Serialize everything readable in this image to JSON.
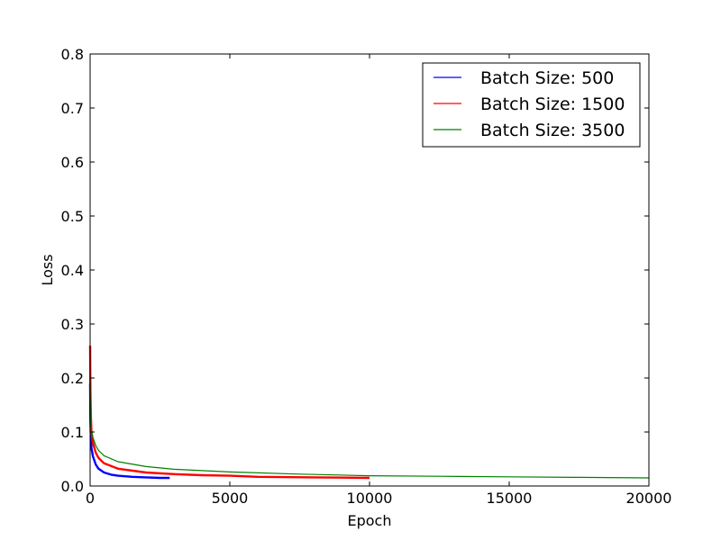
{
  "chart_data": {
    "type": "line",
    "title": "",
    "xlabel": "Epoch",
    "ylabel": "Loss",
    "xlim": [
      0,
      20000
    ],
    "ylim": [
      0,
      0.8
    ],
    "xticks": [
      0,
      5000,
      10000,
      15000,
      20000
    ],
    "yticks": [
      0.0,
      0.1,
      0.2,
      0.3,
      0.4,
      0.5,
      0.6,
      0.7,
      0.8
    ],
    "xtick_labels": [
      "0",
      "5000",
      "10000",
      "15000",
      "20000"
    ],
    "ytick_labels": [
      "0.0",
      "0.1",
      "0.2",
      "0.3",
      "0.4",
      "0.5",
      "0.6",
      "0.7",
      "0.8"
    ],
    "grid": false,
    "legend_position": "top-right",
    "series": [
      {
        "name": "Batch Size: 500",
        "color": "#0000ff",
        "x": [
          0,
          10,
          25,
          50,
          100,
          200,
          300,
          500,
          750,
          1000,
          1500,
          2000,
          2500,
          2850
        ],
        "y": [
          0.19,
          0.12,
          0.09,
          0.07,
          0.055,
          0.04,
          0.032,
          0.025,
          0.021,
          0.019,
          0.017,
          0.016,
          0.015,
          0.015
        ]
      },
      {
        "name": "Batch Size: 1500",
        "color": "#ff0000",
        "x": [
          0,
          10,
          25,
          50,
          100,
          200,
          300,
          500,
          1000,
          2000,
          3000,
          4000,
          5000,
          6000,
          8000,
          10000
        ],
        "y": [
          0.26,
          0.18,
          0.13,
          0.1,
          0.08,
          0.062,
          0.052,
          0.042,
          0.032,
          0.025,
          0.022,
          0.02,
          0.019,
          0.017,
          0.016,
          0.015
        ]
      },
      {
        "name": "Batch Size: 3500",
        "color": "#008000",
        "x": [
          0,
          10,
          25,
          50,
          100,
          200,
          300,
          500,
          1000,
          2000,
          3000,
          5000,
          7500,
          10000,
          12500,
          15000,
          17500,
          20000
        ],
        "y": [
          0.2,
          0.15,
          0.12,
          0.105,
          0.09,
          0.075,
          0.066,
          0.056,
          0.045,
          0.036,
          0.031,
          0.026,
          0.022,
          0.019,
          0.018,
          0.017,
          0.016,
          0.015
        ]
      }
    ]
  }
}
